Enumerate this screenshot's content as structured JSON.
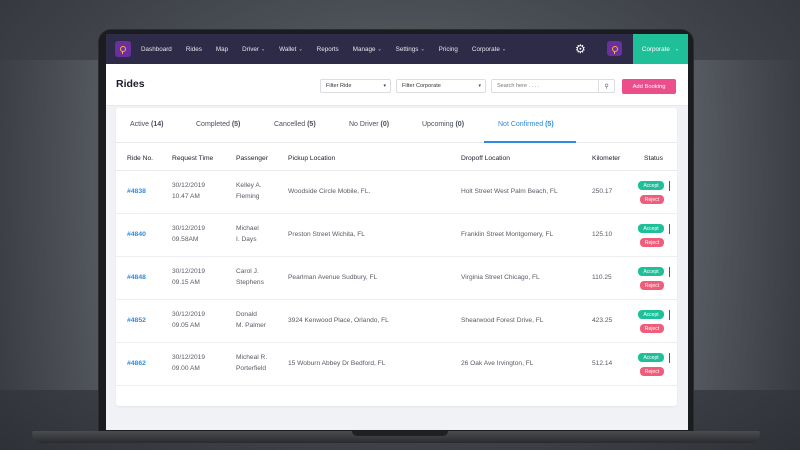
{
  "nav": {
    "items": [
      {
        "label": "Dashboard",
        "chevron": false
      },
      {
        "label": "Rides",
        "chevron": false
      },
      {
        "label": "Map",
        "chevron": false
      },
      {
        "label": "Driver",
        "chevron": true
      },
      {
        "label": "Wallet",
        "chevron": true
      },
      {
        "label": "Reports",
        "chevron": false
      },
      {
        "label": "Manage",
        "chevron": true
      },
      {
        "label": "Settings",
        "chevron": true
      },
      {
        "label": "Pricing",
        "chevron": false
      },
      {
        "label": "Corporate",
        "chevron": true
      }
    ],
    "corporate_button": "Corporate",
    "accent_color": "#1fbf9a",
    "bar_color": "#2d2b47"
  },
  "header": {
    "title": "Rides",
    "filter_ride": "Filter Ride",
    "filter_corporate": "Filter Corporate",
    "search_placeholder": "Search here . . . .",
    "add_booking": "Add Booking"
  },
  "tabs": [
    {
      "label": "Active",
      "count": "(14)"
    },
    {
      "label": "Completed",
      "count": "(5)"
    },
    {
      "label": "Cancelled",
      "count": "(5)"
    },
    {
      "label": "No Driver",
      "count": "(0)"
    },
    {
      "label": "Upcoming",
      "count": "(0)"
    },
    {
      "label": "Not Confirmed",
      "count": "(5)",
      "active": true
    }
  ],
  "table": {
    "columns": [
      "Ride No.",
      "Request Time",
      "Passenger",
      "Pickup Location",
      "Dropoff Location",
      "Kilometer",
      "Status"
    ],
    "accept_label": "Accept",
    "reject_label": "Reject",
    "rows": [
      {
        "ride": "#4838",
        "date": "30/12/2019",
        "time": "10.47 AM",
        "p1": "Kelley A.",
        "p2": "Fleming",
        "pickup": "Woodside Circle Mobile, FL.",
        "dropoff": "Holt Street West Palm Beach, FL",
        "km": "250.17"
      },
      {
        "ride": "#4840",
        "date": "30/12/2019",
        "time": "09.58AM",
        "p1": "Michael",
        "p2": "I. Days",
        "pickup": " Preston Street Wichita, FL",
        "dropoff": "Franklin Street Montgomery, FL",
        "km": "125.10"
      },
      {
        "ride": "#4848",
        "date": "30/12/2019",
        "time": "09.15 AM",
        "p1": "Carol J.",
        "p2": "Stephens",
        "pickup": "Pearlman Avenue Sudbury, FL",
        "dropoff": "Virginia Street Chicago, FL",
        "km": "110.25"
      },
      {
        "ride": "#4852",
        "date": "30/12/2019",
        "time": "09.05 AM",
        "p1": "Donald",
        "p2": "M. Palmer",
        "pickup": "3924  Kenwood Place, Orlando, FL",
        "dropoff": "Shearwood Forest Drive, FL",
        "km": "423.25"
      },
      {
        "ride": "#4862",
        "date": "30/12/2019",
        "time": "09.00 AM",
        "p1": "Micheal R.",
        "p2": "Porterfield",
        "pickup": "15 Woburn Abbey Dr Bedford, FL",
        "dropoff": "26 Oak Ave Irvington, FL",
        "km": "512.14"
      }
    ]
  }
}
